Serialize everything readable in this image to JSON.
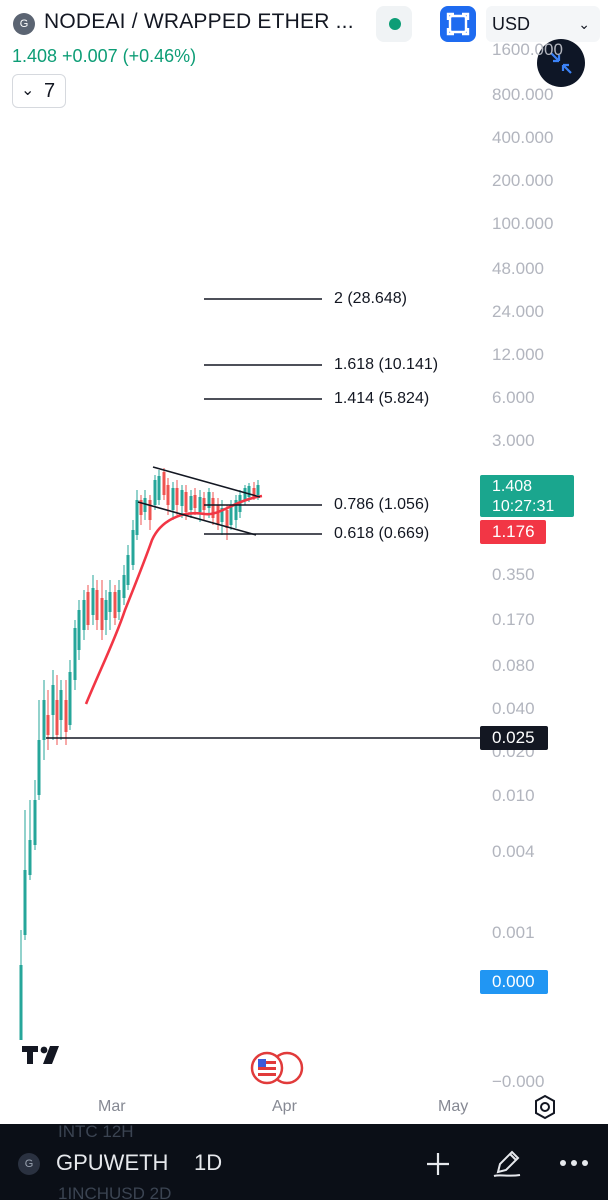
{
  "header": {
    "logo_letter": "G",
    "title": "NODEAI / WRAPPED ETHER ...",
    "currency": "USD",
    "price_summary": "1.408 +0.007 (+0.46%)",
    "indicator_count": "7",
    "up_color": "#0d9d76",
    "accent": "#1e6bf0"
  },
  "price_axis": {
    "labels": [
      "1600.000",
      "800.000",
      "400.000",
      "200.000",
      "100.000",
      "48.000",
      "24.000",
      "12.000",
      "6.000",
      "3.000",
      "0.350",
      "0.170",
      "0.080",
      "0.040",
      "0.020",
      "0.010",
      "0.004",
      "0.001",
      "−0.000"
    ],
    "scale": "log"
  },
  "fib_levels": [
    {
      "label": "2 (28.648)"
    },
    {
      "label": "1.618 (10.141)"
    },
    {
      "label": "1.414 (5.824)"
    },
    {
      "label": "0.786 (1.056)"
    },
    {
      "label": "0.618 (0.669)"
    }
  ],
  "price_tags": {
    "last_price": "1.408",
    "countdown": "10:27:31",
    "ma_value": "1.176",
    "horizontal_line": "0.025",
    "crosshair": "0.000"
  },
  "time_axis": [
    "Mar",
    "Apr",
    "May"
  ],
  "colors": {
    "up": "#26a69a",
    "down": "#ef5350",
    "ma": "#f23645"
  },
  "bottom_bar": {
    "logo_letter": "G",
    "symbol": "GPUWETH",
    "interval": "1D",
    "ghost_top": "INTC          12H",
    "ghost_bottom": "1INCHUSD        2D"
  },
  "icons": {
    "chart_type": "chart-type-icon",
    "minimize": "minimize-icon",
    "settings": "settings-hex-icon",
    "add": "plus-icon",
    "draw": "pencil-icon",
    "more": "more-dots-icon",
    "events": "economic-events-icon"
  }
}
